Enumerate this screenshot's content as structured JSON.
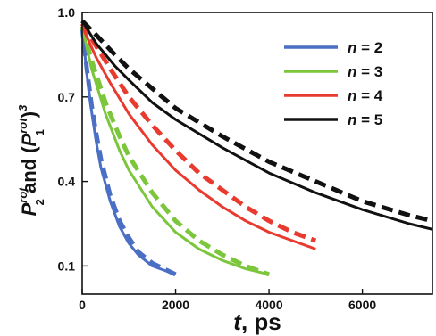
{
  "chart_data": {
    "type": "line",
    "xlabel": {
      "var": "t",
      "rest": ", ps"
    },
    "ylabel": {
      "p2": "P",
      "sup": "rot",
      "sub2": "2",
      "and": " and (",
      "p1": "P",
      "sub1": "1",
      "close": ")",
      "cube": "3"
    },
    "xlim": [
      0,
      7500
    ],
    "ylim": [
      0,
      1.0
    ],
    "xticks": [
      0,
      2000,
      4000,
      6000
    ],
    "xtick_labels": [
      "0",
      "2000",
      "4000",
      "6000"
    ],
    "yticks": [
      0.1,
      0.4,
      0.7,
      1.0
    ],
    "ytick_labels": [
      "0.1",
      "0.4",
      "0.7",
      "1.0"
    ],
    "legend_position": "top-right",
    "series": [
      {
        "name": "n = 2",
        "legend_var": "n",
        "legend_value": " = 2",
        "color": "#4a6fc4",
        "solid": {
          "x": [
            0,
            100,
            200,
            300,
            400,
            600,
            800,
            1000,
            1200,
            1500,
            2000
          ],
          "y": [
            0.95,
            0.78,
            0.65,
            0.54,
            0.45,
            0.33,
            0.24,
            0.18,
            0.14,
            0.1,
            0.07
          ]
        },
        "dashed": {
          "x": [
            0,
            100,
            200,
            300,
            400,
            600,
            800,
            1000,
            1200,
            1500,
            2000
          ],
          "y": [
            0.95,
            0.8,
            0.67,
            0.57,
            0.48,
            0.35,
            0.26,
            0.2,
            0.15,
            0.11,
            0.07
          ]
        }
      },
      {
        "name": "n = 3",
        "legend_var": "n",
        "legend_value": " = 3",
        "color": "#7cc63b",
        "solid": {
          "x": [
            0,
            200,
            500,
            800,
            1000,
            1500,
            2000,
            2500,
            3000,
            3500,
            4000
          ],
          "y": [
            0.95,
            0.8,
            0.64,
            0.51,
            0.44,
            0.31,
            0.22,
            0.16,
            0.12,
            0.09,
            0.07
          ]
        },
        "dashed": {
          "x": [
            0,
            200,
            500,
            800,
            1000,
            1500,
            2000,
            2500,
            3000,
            3500,
            4000
          ],
          "y": [
            0.95,
            0.83,
            0.68,
            0.56,
            0.49,
            0.36,
            0.26,
            0.19,
            0.14,
            0.1,
            0.07
          ]
        }
      },
      {
        "name": "n = 4",
        "legend_var": "n",
        "legend_value": " = 4",
        "color": "#e83a2e",
        "solid": {
          "x": [
            0,
            300,
            600,
            1000,
            1500,
            2000,
            2500,
            3000,
            3500,
            4000,
            4500,
            5000
          ],
          "y": [
            0.95,
            0.84,
            0.75,
            0.64,
            0.53,
            0.44,
            0.37,
            0.31,
            0.26,
            0.22,
            0.19,
            0.16
          ]
        },
        "dashed": {
          "x": [
            0,
            300,
            600,
            1000,
            1500,
            2000,
            2500,
            3000,
            3500,
            4000,
            4500,
            5000
          ],
          "y": [
            0.96,
            0.88,
            0.8,
            0.7,
            0.6,
            0.51,
            0.43,
            0.37,
            0.31,
            0.26,
            0.22,
            0.19
          ]
        }
      },
      {
        "name": "n = 5",
        "legend_var": "n",
        "legend_value": " = 5",
        "color": "#111111",
        "solid": {
          "x": [
            0,
            300,
            700,
            1000,
            1500,
            2000,
            3000,
            4000,
            5000,
            6000,
            7000,
            7500
          ],
          "y": [
            0.97,
            0.89,
            0.81,
            0.76,
            0.68,
            0.62,
            0.52,
            0.43,
            0.36,
            0.3,
            0.25,
            0.23
          ]
        },
        "dashed": {
          "x": [
            0,
            300,
            700,
            1000,
            1500,
            2000,
            3000,
            4000,
            5000,
            6000,
            7000,
            7500
          ],
          "y": [
            0.97,
            0.92,
            0.85,
            0.8,
            0.73,
            0.66,
            0.56,
            0.47,
            0.4,
            0.33,
            0.28,
            0.26
          ]
        }
      }
    ]
  }
}
